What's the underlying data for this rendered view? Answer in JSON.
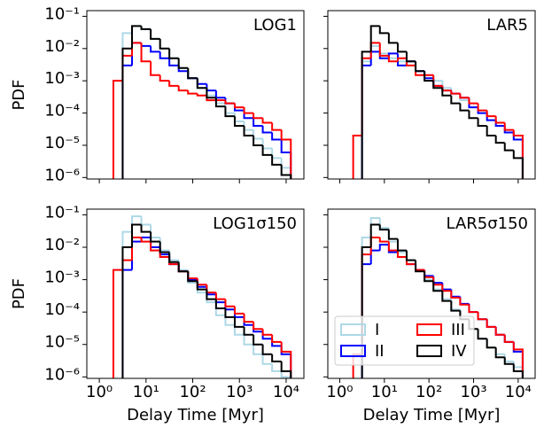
{
  "chart_data": [
    {
      "type": "histogram",
      "title": "LOG1",
      "ylabel": "PDF",
      "xlim": [
        0.54,
        24000
      ],
      "ylim": [
        9e-07,
        0.15
      ],
      "log_x": true,
      "log_y": true,
      "yticks": [
        {
          "value": 1e-06,
          "label": "10⁻⁶"
        },
        {
          "value": 1e-05,
          "label": "10⁻⁵"
        },
        {
          "value": 0.0001,
          "label": "10⁻⁴"
        },
        {
          "value": 0.001,
          "label": "10⁻³"
        },
        {
          "value": 0.01,
          "label": "10⁻²"
        },
        {
          "value": 0.1,
          "label": "10⁻¹"
        }
      ],
      "bins": [
        2,
        3.16,
        5.01,
        7.94,
        12.6,
        20,
        31.6,
        50.1,
        79.4,
        126,
        200,
        316,
        501,
        794,
        1260,
        2000,
        3160,
        5010,
        7940,
        12600
      ],
      "series": [
        {
          "color": "#add8e6",
          "values": [
            null,
            0.03,
            0.05,
            0.04,
            0.02,
            0.01,
            0.005,
            0.0025,
            0.0012,
            0.0006,
            0.00035,
            0.0002,
            0.0001,
            5.5e-05,
            3e-05,
            1.6e-05,
            8e-06,
            4e-06,
            2e-06
          ]
        },
        {
          "color": "#0000ff",
          "values": [
            null,
            0.003,
            0.015,
            0.012,
            0.008,
            0.005,
            0.003,
            0.002,
            0.0012,
            0.0008,
            0.0005,
            0.0003,
            0.0002,
            0.00012,
            7e-05,
            4e-05,
            2.5e-05,
            1.5e-05,
            6e-06
          ]
        },
        {
          "color": "#ff0000",
          "values": [
            0.001,
            0.006,
            0.015,
            0.004,
            0.0015,
            0.001,
            0.0007,
            0.0005,
            0.0004,
            0.00035,
            0.00025,
            0.00025,
            0.0002,
            0.00015,
            0.0001,
            7e-05,
            5e-05,
            3e-05,
            1.5e-05
          ]
        },
        {
          "color": "#000000",
          "values": [
            null,
            0.01,
            0.05,
            0.04,
            0.02,
            0.01,
            0.005,
            0.0025,
            0.0012,
            0.0006,
            0.0003,
            0.00016,
            8e-05,
            4e-05,
            2e-05,
            1e-05,
            5e-06,
            2.5e-06,
            1.2e-06
          ]
        }
      ]
    },
    {
      "type": "histogram",
      "title": "LAR5",
      "xlim": [
        0.54,
        24000
      ],
      "ylim": [
        9e-07,
        0.15
      ],
      "log_x": true,
      "log_y": true,
      "bins": [
        2,
        3.16,
        5.01,
        7.94,
        12.6,
        20,
        31.6,
        50.1,
        79.4,
        126,
        200,
        316,
        501,
        794,
        1260,
        2000,
        3160,
        5010,
        7940,
        12600
      ],
      "series": [
        {
          "color": "#add8e6",
          "values": [
            null,
            0.004,
            0.012,
            0.007,
            0.005,
            0.004,
            0.003,
            0.002,
            0.0015,
            0.001,
            0.0006,
            0.0004,
            0.00025,
            0.00015,
            0.0001,
            6e-05,
            4e-05,
            2.5e-05,
            1.5e-05
          ]
        },
        {
          "color": "#0000ff",
          "values": [
            null,
            0.003,
            0.008,
            0.005,
            0.007,
            0.003,
            0.004,
            0.002,
            0.0012,
            0.0007,
            0.0005,
            0.0004,
            0.0003,
            0.00015,
            0.0001,
            6e-05,
            4e-05,
            2.5e-05,
            1.5e-05
          ]
        },
        {
          "color": "#ff0000",
          "values": [
            2e-05,
            0.005,
            0.015,
            0.006,
            0.004,
            0.005,
            0.003,
            0.0015,
            0.0015,
            0.0007,
            0.0005,
            0.0004,
            0.0003,
            0.0002,
            0.00012,
            8e-05,
            5e-05,
            3e-05,
            2e-05
          ]
        },
        {
          "color": "#000000",
          "values": [
            null,
            0.008,
            0.05,
            0.03,
            0.015,
            0.008,
            0.004,
            0.002,
            0.001,
            0.0006,
            0.00035,
            0.0002,
            0.00012,
            7e-05,
            4e-05,
            2e-05,
            1.2e-05,
            7e-06,
            4e-06
          ]
        }
      ]
    },
    {
      "type": "histogram",
      "title": "LOG1σ150",
      "ylabel": "PDF",
      "xlabel": "Delay Time [Myr]",
      "xlim": [
        0.54,
        24000
      ],
      "ylim": [
        9e-07,
        0.15
      ],
      "log_x": true,
      "log_y": true,
      "xticks": [
        {
          "value": 1,
          "label": "10⁰"
        },
        {
          "value": 10,
          "label": "10¹"
        },
        {
          "value": 100,
          "label": "10²"
        },
        {
          "value": 1000,
          "label": "10³"
        },
        {
          "value": 10000,
          "label": "10⁴"
        }
      ],
      "yticks": [
        {
          "value": 1e-06,
          "label": "10⁻⁶"
        },
        {
          "value": 1e-05,
          "label": "10⁻⁵"
        },
        {
          "value": 0.0001,
          "label": "10⁻⁴"
        },
        {
          "value": 0.001,
          "label": "10⁻³"
        },
        {
          "value": 0.01,
          "label": "10⁻²"
        },
        {
          "value": 0.1,
          "label": "10⁻¹"
        }
      ],
      "bins": [
        2,
        3.16,
        5.01,
        7.94,
        12.6,
        20,
        31.6,
        50.1,
        79.4,
        126,
        200,
        316,
        501,
        794,
        1260,
        2000,
        3160,
        5010,
        7940,
        12600
      ],
      "series": [
        {
          "color": "#add8e6",
          "values": [
            null,
            0.03,
            0.09,
            0.05,
            0.02,
            0.008,
            0.004,
            0.002,
            0.0008,
            0.0004,
            0.0002,
            8e-05,
            4e-05,
            2e-05,
            1e-05,
            5e-06,
            2.5e-06,
            1.5e-06,
            1e-06
          ]
        },
        {
          "color": "#0000ff",
          "values": [
            null,
            0.002,
            0.015,
            0.02,
            0.01,
            0.006,
            0.003,
            0.0018,
            0.001,
            0.0006,
            0.00035,
            0.0002,
            0.00012,
            7e-05,
            4e-05,
            2.5e-05,
            1.5e-05,
            9e-06,
            5e-06
          ]
        },
        {
          "color": "#ff0000",
          "values": [
            0.002,
            0.004,
            0.02,
            0.015,
            0.008,
            0.005,
            0.003,
            0.0018,
            0.0011,
            0.0007,
            0.0004,
            0.00025,
            0.00015,
            9e-05,
            5e-05,
            3e-05,
            2e-05,
            1.2e-05,
            6e-06
          ]
        },
        {
          "color": "#000000",
          "values": [
            null,
            0.01,
            0.05,
            0.03,
            0.015,
            0.007,
            0.0035,
            0.0018,
            0.0009,
            0.0005,
            0.00025,
            0.00013,
            7e-05,
            3.5e-05,
            2e-05,
            1e-05,
            5e-06,
            3e-06,
            1.5e-06
          ]
        }
      ]
    },
    {
      "type": "histogram",
      "title": "LAR5σ150",
      "xlabel": "Delay Time [Myr]",
      "xlim": [
        0.54,
        24000
      ],
      "ylim": [
        9e-07,
        0.15
      ],
      "log_x": true,
      "log_y": true,
      "xticks": [
        {
          "value": 1,
          "label": "10⁰"
        },
        {
          "value": 10,
          "label": "10¹"
        },
        {
          "value": 100,
          "label": "10²"
        },
        {
          "value": 1000,
          "label": "10³"
        },
        {
          "value": 10000,
          "label": "10⁴"
        }
      ],
      "legend": "lower left",
      "bins": [
        2,
        3.16,
        5.01,
        7.94,
        12.6,
        20,
        31.6,
        50.1,
        79.4,
        126,
        200,
        316,
        501,
        794,
        1260,
        2000,
        3160,
        5010,
        7940,
        12600
      ],
      "series": [
        {
          "name": "I",
          "color": "#add8e6",
          "values": [
            null,
            0.02,
            0.08,
            0.04,
            0.015,
            0.007,
            0.004,
            0.002,
            0.001,
            0.0005,
            0.00025,
            0.00012,
            6e-05,
            3e-05,
            1.5e-05,
            8e-06,
            5e-06,
            3e-06,
            2e-06
          ]
        },
        {
          "name": "II",
          "color": "#0000ff",
          "values": [
            null,
            0.003,
            0.008,
            0.012,
            0.007,
            0.005,
            0.003,
            0.002,
            0.0013,
            0.0008,
            0.0005,
            0.0003,
            0.00018,
            0.0001,
            6e-05,
            3.5e-05,
            2e-05,
            1.2e-05,
            6e-06
          ]
        },
        {
          "name": "III",
          "color": "#ff0000",
          "values": [
            5e-06,
            0.006,
            0.02,
            0.015,
            0.008,
            0.005,
            0.003,
            0.002,
            0.0012,
            0.0007,
            0.00045,
            0.00028,
            0.00017,
            0.0001,
            6e-05,
            3.5e-05,
            2e-05,
            1.2e-05,
            7e-06
          ]
        },
        {
          "name": "IV",
          "color": "#000000",
          "values": [
            null,
            0.01,
            0.05,
            0.035,
            0.018,
            0.008,
            0.004,
            0.0018,
            0.0009,
            0.00045,
            0.00022,
            0.00011,
            6e-05,
            3e-05,
            1.5e-05,
            8e-06,
            4e-06,
            2.5e-06,
            1.5e-06
          ]
        }
      ]
    }
  ]
}
